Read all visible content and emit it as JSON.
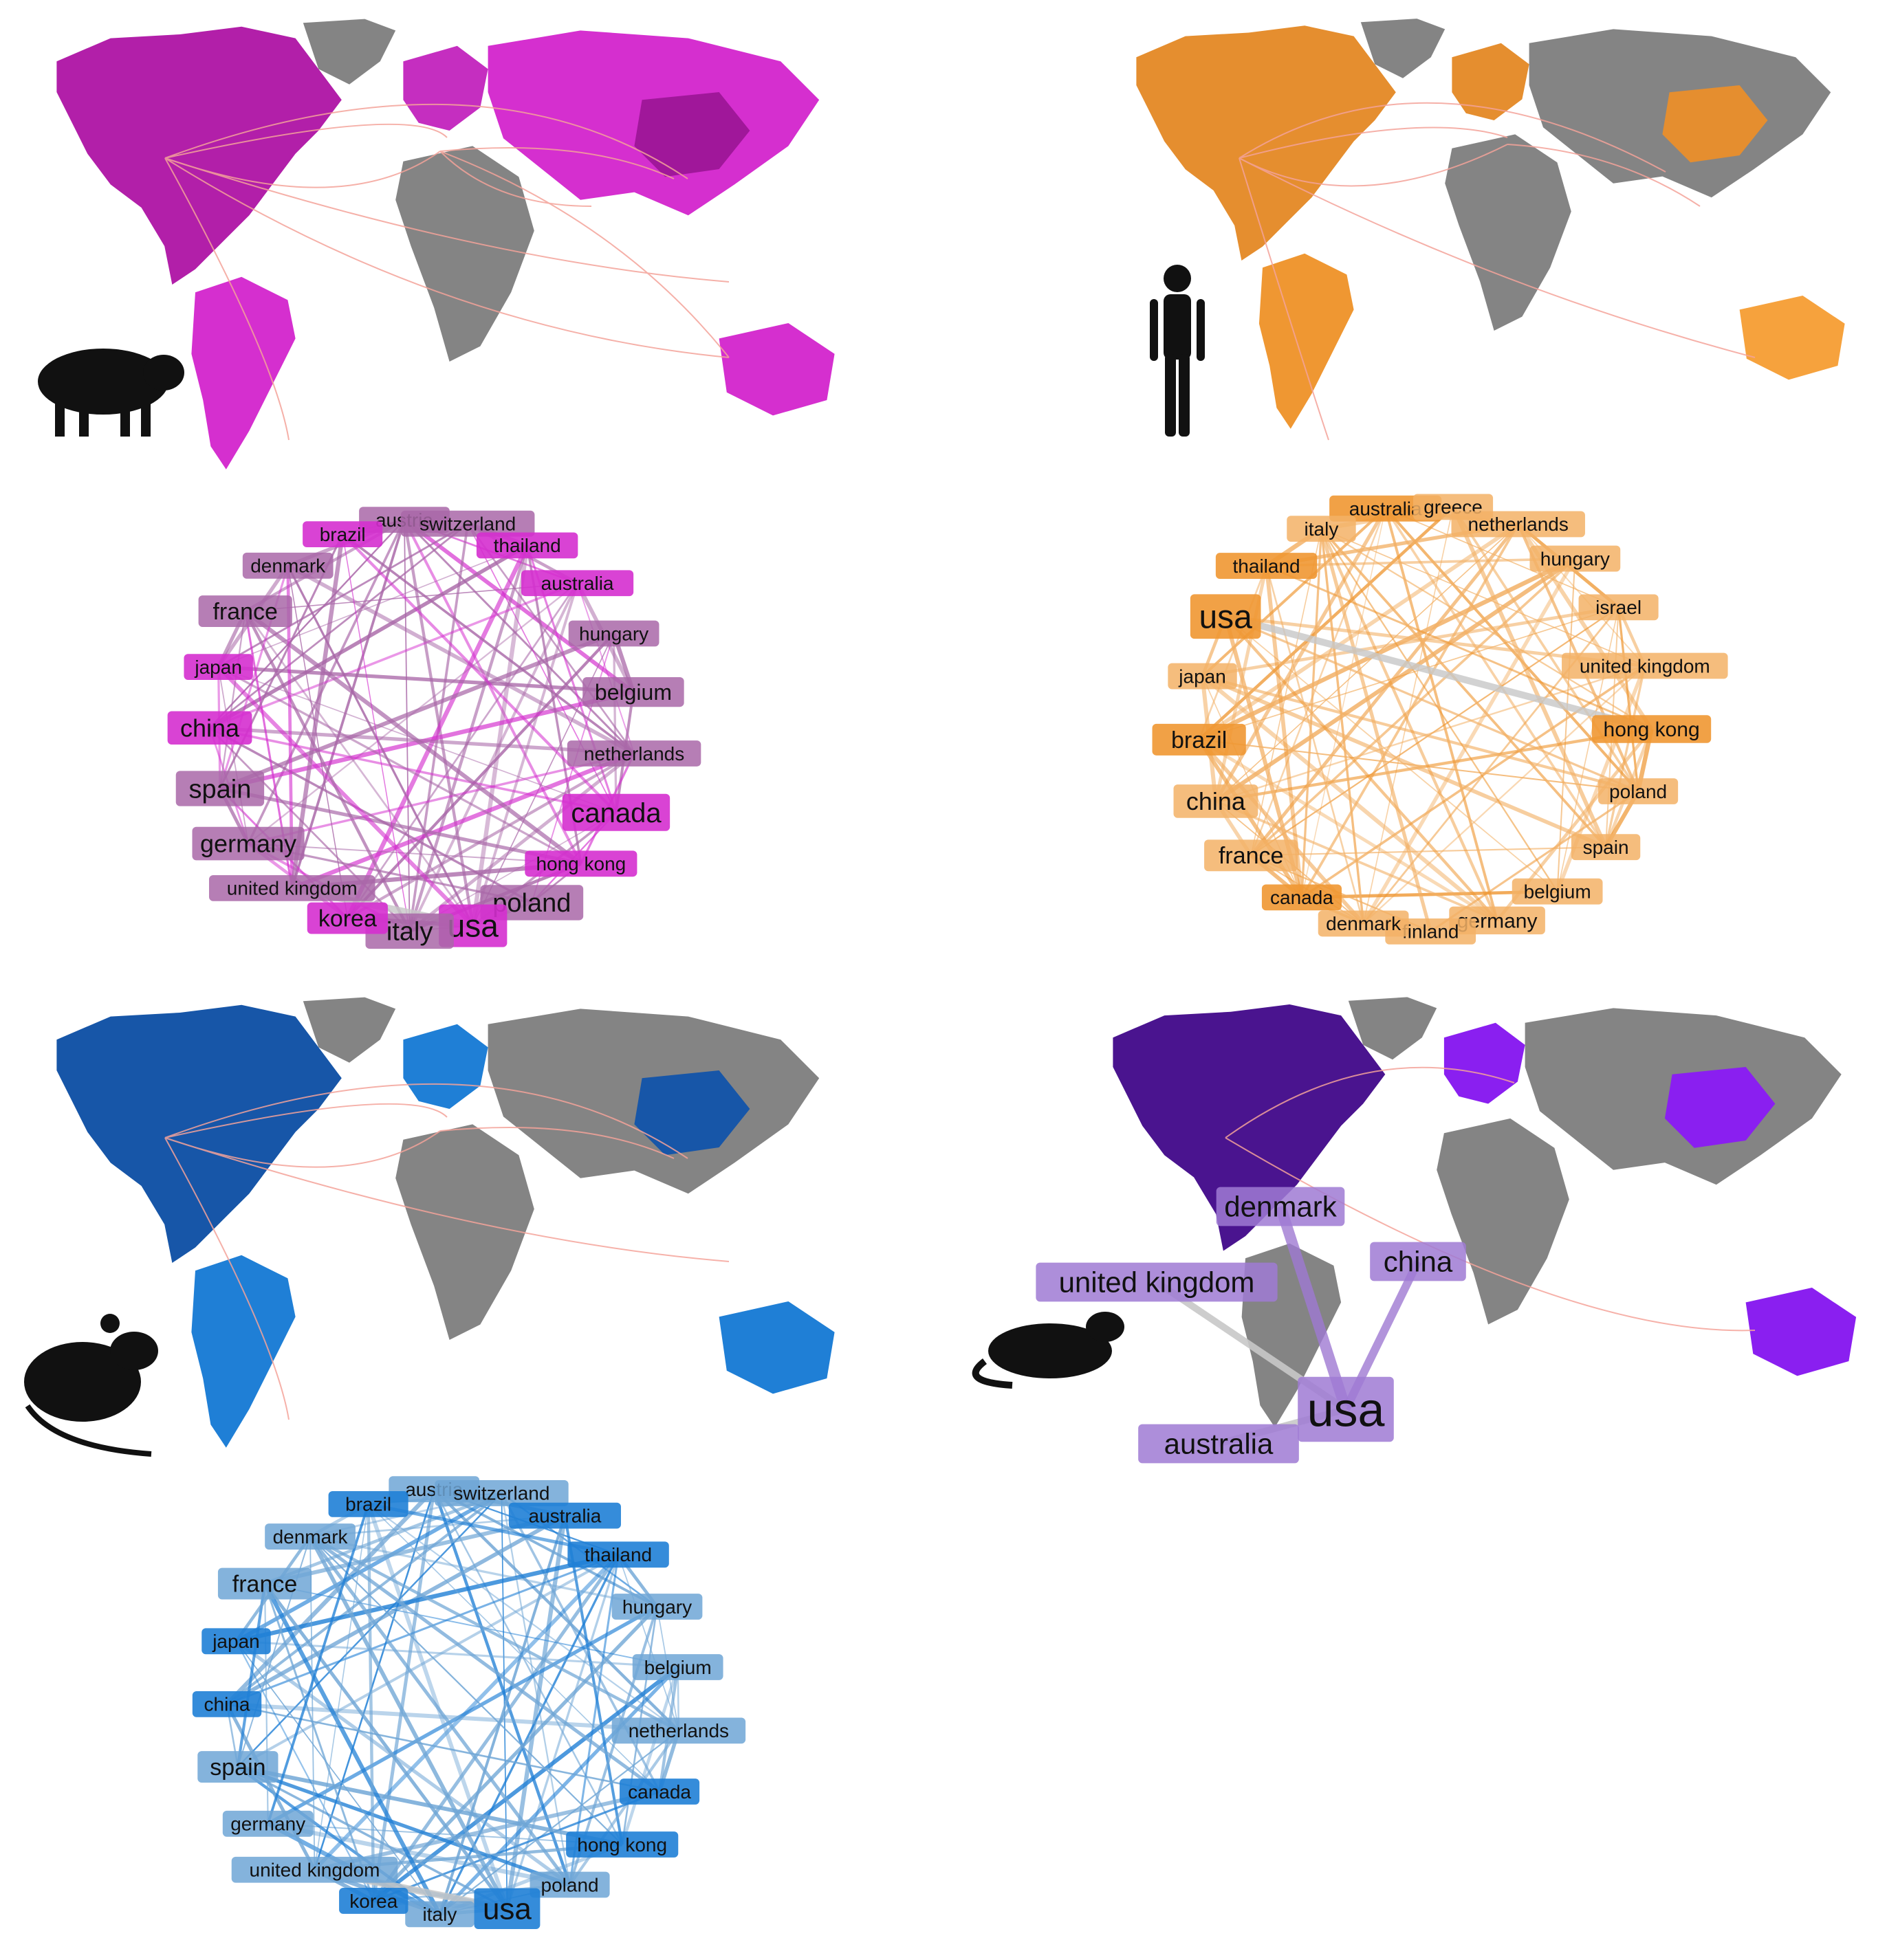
{
  "colors": {
    "land_gray": "#848484",
    "route_line": "#f4a39a",
    "edge_gray": "#c8c8c8"
  },
  "panels": [
    {
      "id": "pig",
      "animal_icon": "pig-silhouette-icon",
      "accent": "#d52fcf",
      "accent_dark": "#a0179a",
      "muted": "#a967a8",
      "nodes": [
        "austria",
        "switzerland",
        "thailand",
        "australia",
        "hungary",
        "belgium",
        "netherlands",
        "canada",
        "hong kong",
        "poland",
        "usa",
        "italy",
        "korea",
        "united kingdom",
        "germany",
        "spain",
        "china",
        "japan",
        "france",
        "denmark",
        "brazil"
      ]
    },
    {
      "id": "human",
      "animal_icon": "human-silhouette-icon",
      "accent": "#ef9732",
      "accent_dark": "#d86a2b",
      "muted": "#f3b166",
      "nodes": [
        "australia",
        "greece",
        "netherlands",
        "hungary",
        "israel",
        "united kingdom",
        "hong kong",
        "poland",
        "spain",
        "belgium",
        "germany",
        "finland",
        "denmark",
        "canada",
        "france",
        "china",
        "brazil",
        "japan",
        "usa",
        "thailand",
        "italy"
      ]
    },
    {
      "id": "mouse",
      "animal_icon": "mouse-silhouette-icon",
      "accent": "#1f7fd6",
      "accent_dark": "#1756a8",
      "muted": "#6fa6d6",
      "nodes": [
        "austria",
        "switzerland",
        "australia",
        "thailand",
        "hungary",
        "belgium",
        "netherlands",
        "canada",
        "hong kong",
        "poland",
        "usa",
        "italy",
        "korea",
        "united kingdom",
        "germany",
        "spain",
        "china",
        "japan",
        "france",
        "denmark",
        "brazil"
      ]
    },
    {
      "id": "ferret",
      "animal_icon": "ferret-silhouette-icon",
      "accent": "#8a1ff0",
      "accent_dark": "#4a148f",
      "muted": "#9f7ad3",
      "nodes": [
        "denmark",
        "china",
        "united kingdom",
        "usa",
        "australia"
      ]
    }
  ]
}
